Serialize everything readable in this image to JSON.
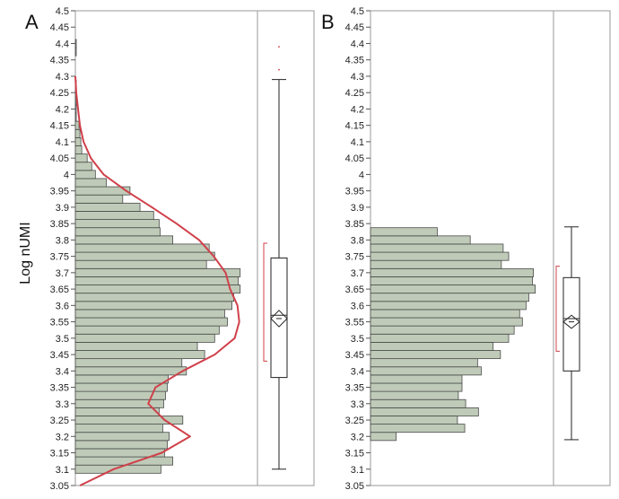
{
  "figure": {
    "ylabel": "Log nUMI"
  },
  "chart_data": [
    {
      "type": "bar",
      "panel": "A",
      "orientation": "horizontal-histogram",
      "ylabel": "Log nUMI",
      "ylim": [
        3.05,
        4.5
      ],
      "yticks": [
        "3.05",
        "3.1",
        "3.15",
        "3.2",
        "3.25",
        "3.3",
        "3.35",
        "3.4",
        "3.45",
        "3.5",
        "3.55",
        "3.6",
        "3.65",
        "3.7",
        "3.75",
        "3.8",
        "3.85",
        "3.9",
        "3.95",
        "4",
        "4.05",
        "4.1",
        "4.15",
        "4.2",
        "4.25",
        "4.3",
        "4.35",
        "4.4",
        "4.45",
        "4.5"
      ],
      "bins": [
        {
          "y": 3.1,
          "count": 94
        },
        {
          "y": 3.125,
          "count": 107
        },
        {
          "y": 3.15,
          "count": 98
        },
        {
          "y": 3.175,
          "count": 101
        },
        {
          "y": 3.2,
          "count": 103
        },
        {
          "y": 3.225,
          "count": 96
        },
        {
          "y": 3.25,
          "count": 118
        },
        {
          "y": 3.275,
          "count": 92
        },
        {
          "y": 3.3,
          "count": 97
        },
        {
          "y": 3.325,
          "count": 99
        },
        {
          "y": 3.35,
          "count": 101
        },
        {
          "y": 3.375,
          "count": 102
        },
        {
          "y": 3.4,
          "count": 122
        },
        {
          "y": 3.425,
          "count": 117
        },
        {
          "y": 3.45,
          "count": 142
        },
        {
          "y": 3.475,
          "count": 134
        },
        {
          "y": 3.5,
          "count": 153
        },
        {
          "y": 3.525,
          "count": 158
        },
        {
          "y": 3.55,
          "count": 167
        },
        {
          "y": 3.575,
          "count": 164
        },
        {
          "y": 3.6,
          "count": 172
        },
        {
          "y": 3.625,
          "count": 174
        },
        {
          "y": 3.65,
          "count": 181
        },
        {
          "y": 3.675,
          "count": 179
        },
        {
          "y": 3.7,
          "count": 181
        },
        {
          "y": 3.725,
          "count": 144
        },
        {
          "y": 3.75,
          "count": 153
        },
        {
          "y": 3.775,
          "count": 147
        },
        {
          "y": 3.8,
          "count": 107
        },
        {
          "y": 3.825,
          "count": 93
        },
        {
          "y": 3.85,
          "count": 92
        },
        {
          "y": 3.875,
          "count": 86
        },
        {
          "y": 3.9,
          "count": 71
        },
        {
          "y": 3.925,
          "count": 52
        },
        {
          "y": 3.95,
          "count": 60
        },
        {
          "y": 3.975,
          "count": 34
        },
        {
          "y": 4.0,
          "count": 22
        },
        {
          "y": 4.025,
          "count": 18
        },
        {
          "y": 4.05,
          "count": 13
        },
        {
          "y": 4.075,
          "count": 7
        },
        {
          "y": 4.1,
          "count": 6
        },
        {
          "y": 4.125,
          "count": 5
        },
        {
          "y": 4.15,
          "count": 4
        },
        {
          "y": 4.175,
          "count": 1
        },
        {
          "y": 4.2,
          "count": 1
        },
        {
          "y": 4.225,
          "count": 1
        },
        {
          "y": 4.25,
          "count": 1
        },
        {
          "y": 4.275,
          "count": 1
        },
        {
          "y": 4.375,
          "count": 1
        },
        {
          "y": 4.4,
          "count": 1
        }
      ],
      "density_curve": [
        {
          "y": 3.05,
          "density": 5
        },
        {
          "y": 3.1,
          "density": 42
        },
        {
          "y": 3.15,
          "density": 95
        },
        {
          "y": 3.2,
          "density": 126
        },
        {
          "y": 3.25,
          "density": 98
        },
        {
          "y": 3.3,
          "density": 80
        },
        {
          "y": 3.35,
          "density": 88
        },
        {
          "y": 3.4,
          "density": 118
        },
        {
          "y": 3.45,
          "density": 153
        },
        {
          "y": 3.5,
          "density": 175
        },
        {
          "y": 3.55,
          "density": 180
        },
        {
          "y": 3.6,
          "density": 178
        },
        {
          "y": 3.65,
          "density": 170
        },
        {
          "y": 3.7,
          "density": 165
        },
        {
          "y": 3.75,
          "density": 152
        },
        {
          "y": 3.8,
          "density": 136
        },
        {
          "y": 3.85,
          "density": 111
        },
        {
          "y": 3.9,
          "density": 84
        },
        {
          "y": 3.95,
          "density": 56
        },
        {
          "y": 4.0,
          "density": 31
        },
        {
          "y": 4.05,
          "density": 17
        },
        {
          "y": 4.1,
          "density": 9
        },
        {
          "y": 4.15,
          "density": 5
        },
        {
          "y": 4.2,
          "density": 3
        },
        {
          "y": 4.25,
          "density": 1
        },
        {
          "y": 4.3,
          "density": 0
        }
      ],
      "boxplot": {
        "whisker_low": 3.1,
        "q1": 3.38,
        "median": 3.57,
        "q3": 3.745,
        "whisker_high": 4.29,
        "mean": 3.56,
        "ci_low": 3.535,
        "ci_high": 3.585,
        "shortest_half": [
          3.43,
          3.79
        ],
        "outliers": [
          4.32,
          4.39
        ]
      },
      "colors": {
        "bar_fill": "#bfcbb8",
        "bar_stroke": "#4a4a4a",
        "curve": "#d0404a",
        "bracket": "#d0404a"
      }
    },
    {
      "type": "bar",
      "panel": "B",
      "orientation": "horizontal-histogram",
      "ylim": [
        3.05,
        4.5
      ],
      "yticks": [
        "3.05",
        "3.1",
        "3.15",
        "3.2",
        "3.25",
        "3.3",
        "3.35",
        "3.4",
        "3.45",
        "3.5",
        "3.55",
        "3.6",
        "3.65",
        "3.7",
        "3.75",
        "3.8",
        "3.85",
        "3.9",
        "3.95",
        "4",
        "4.05",
        "4.1",
        "4.15",
        "4.2",
        "4.25",
        "4.3",
        "4.35",
        "4.4",
        "4.45",
        "4.5"
      ],
      "bins": [
        {
          "y": 3.2,
          "count": 28
        },
        {
          "y": 3.225,
          "count": 103
        },
        {
          "y": 3.25,
          "count": 95
        },
        {
          "y": 3.275,
          "count": 118
        },
        {
          "y": 3.3,
          "count": 104
        },
        {
          "y": 3.325,
          "count": 96
        },
        {
          "y": 3.35,
          "count": 100
        },
        {
          "y": 3.375,
          "count": 100
        },
        {
          "y": 3.4,
          "count": 121
        },
        {
          "y": 3.425,
          "count": 117
        },
        {
          "y": 3.45,
          "count": 142
        },
        {
          "y": 3.475,
          "count": 134
        },
        {
          "y": 3.5,
          "count": 151
        },
        {
          "y": 3.525,
          "count": 157
        },
        {
          "y": 3.55,
          "count": 166
        },
        {
          "y": 3.575,
          "count": 163
        },
        {
          "y": 3.6,
          "count": 170
        },
        {
          "y": 3.625,
          "count": 173
        },
        {
          "y": 3.65,
          "count": 180
        },
        {
          "y": 3.675,
          "count": 177
        },
        {
          "y": 3.7,
          "count": 178
        },
        {
          "y": 3.725,
          "count": 143
        },
        {
          "y": 3.75,
          "count": 151
        },
        {
          "y": 3.775,
          "count": 145
        },
        {
          "y": 3.8,
          "count": 109
        },
        {
          "y": 3.825,
          "count": 73
        }
      ],
      "boxplot": {
        "whisker_low": 3.19,
        "q1": 3.4,
        "median": 3.56,
        "q3": 3.685,
        "whisker_high": 3.84,
        "mean": 3.55,
        "ci_low": 3.53,
        "ci_high": 3.57,
        "shortest_half": [
          3.46,
          3.72
        ],
        "outliers": []
      },
      "colors": {
        "bar_fill": "#bfcbb8",
        "bar_stroke": "#4a4a4a",
        "bracket": "#d0404a"
      }
    }
  ]
}
